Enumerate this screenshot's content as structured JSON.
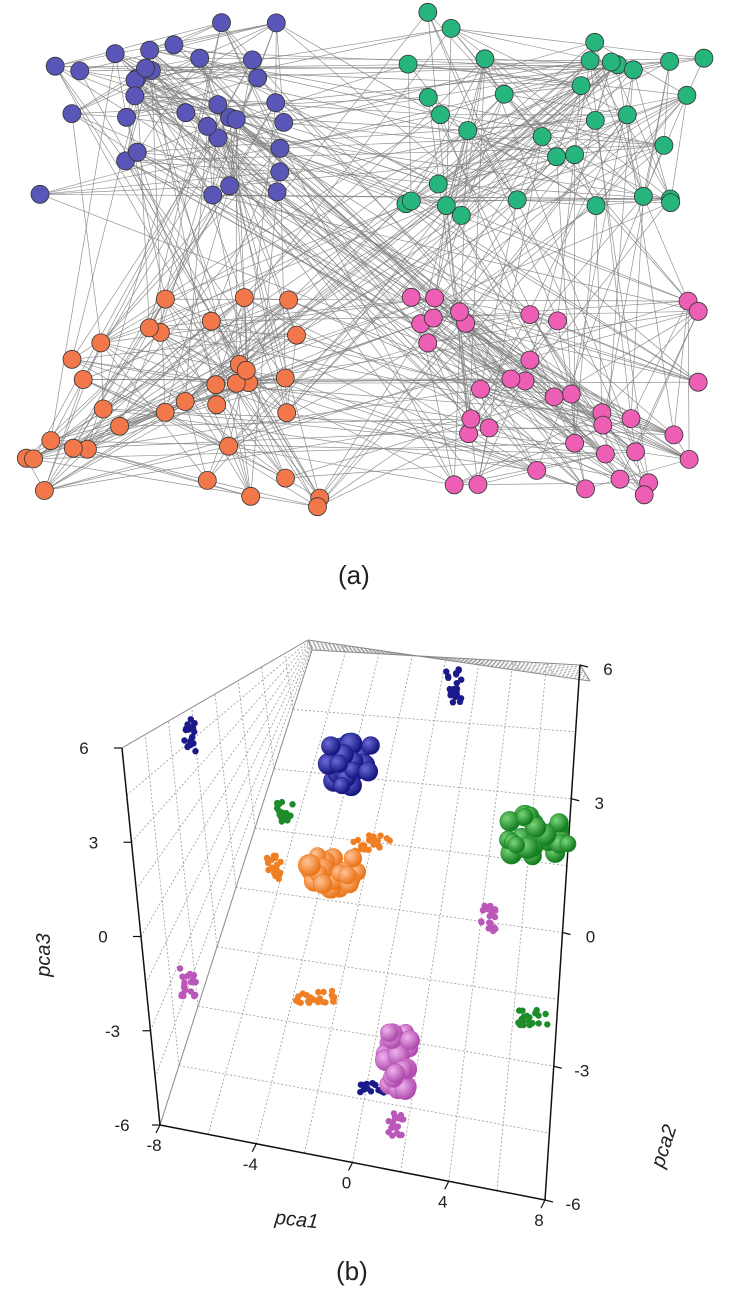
{
  "panel_a": {
    "caption": "(a)",
    "communities": [
      {
        "color": "#5a56b8",
        "count": 33
      },
      {
        "color": "#26b57c",
        "count": 33
      },
      {
        "color": "#f2784b",
        "count": 34
      },
      {
        "color": "#ec5fb4",
        "count": 36
      }
    ],
    "edge_color": "#808080"
  },
  "panel_b": {
    "caption": "(b)",
    "axes": {
      "x_label": "pca1",
      "y_label": "pca2",
      "z_label": "pca3",
      "x_ticks": [
        "-8",
        "-4",
        "0",
        "4",
        "8"
      ],
      "y_ticks": [
        "-6",
        "-3",
        "0",
        "3",
        "6"
      ],
      "z_ticks": [
        "-6",
        "-3",
        "0",
        "3",
        "6"
      ]
    },
    "cluster_colors": {
      "blue": "#1a1a8c",
      "green": "#1e8c2a",
      "orange": "#f07f24",
      "purple": "#bb57b8"
    }
  }
}
